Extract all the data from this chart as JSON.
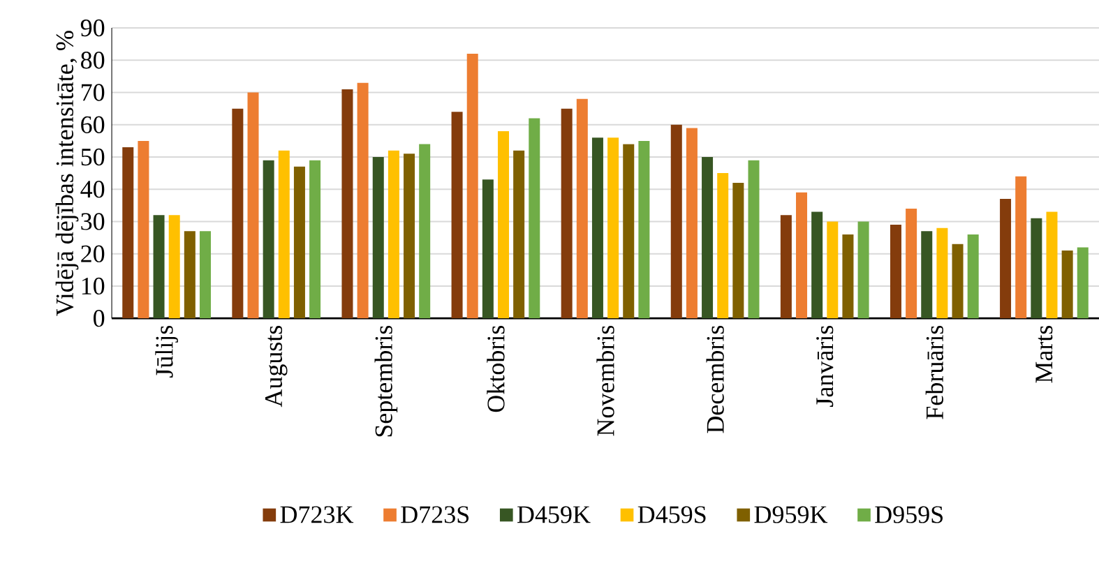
{
  "chart_data": {
    "type": "bar",
    "ylabel": "Vidējā dējības intensitāte, %",
    "categories": [
      "Jūlijs",
      "Augusts",
      "Septembris",
      "Oktobris",
      "Novembris",
      "Decembris",
      "Janvāris",
      "Februāris",
      "Marts"
    ],
    "series": [
      {
        "name": "D723K",
        "color": "#843c0c",
        "values": [
          53,
          65,
          71,
          64,
          65,
          60,
          32,
          29,
          37
        ]
      },
      {
        "name": "D723S",
        "color": "#ed7d31",
        "values": [
          55,
          70,
          73,
          82,
          68,
          59,
          39,
          34,
          44
        ]
      },
      {
        "name": "D459K",
        "color": "#375623",
        "values": [
          32,
          49,
          50,
          43,
          56,
          50,
          33,
          27,
          31
        ]
      },
      {
        "name": "D459S",
        "color": "#ffc000",
        "values": [
          32,
          52,
          52,
          58,
          56,
          45,
          30,
          28,
          33
        ]
      },
      {
        "name": "D959K",
        "color": "#7f6000",
        "values": [
          27,
          47,
          51,
          52,
          54,
          42,
          26,
          23,
          21
        ]
      },
      {
        "name": "D959S",
        "color": "#70ad47",
        "values": [
          27,
          49,
          54,
          62,
          55,
          49,
          30,
          26,
          22
        ]
      }
    ],
    "ylim": [
      0,
      90
    ],
    "yticks": [
      0,
      10,
      20,
      30,
      40,
      50,
      60,
      70,
      80,
      90
    ],
    "grid": "y",
    "legend": "bottom"
  }
}
